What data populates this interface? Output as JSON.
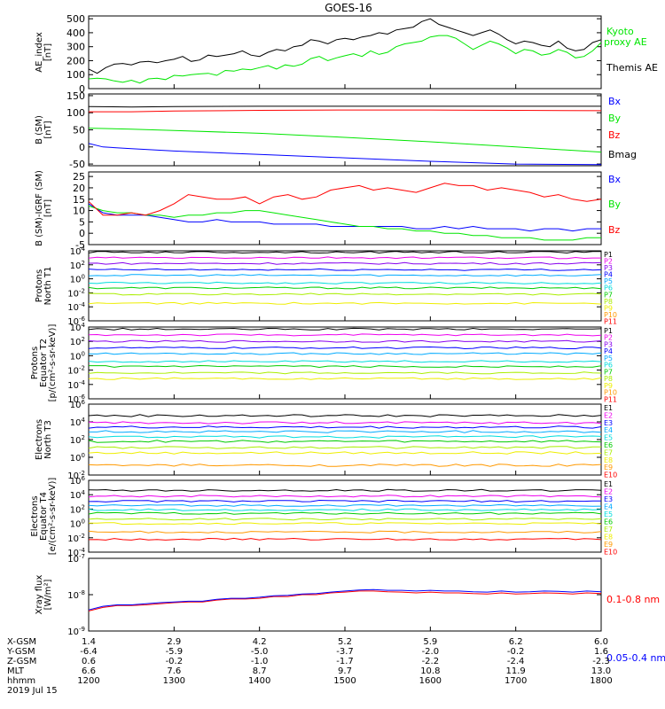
{
  "title": "GOES-16",
  "colors": {
    "black": "#000000",
    "red": "#ff0000",
    "green": "#00e600",
    "blue": "#0000ff",
    "p": [
      "#000000",
      "#ee00ee",
      "#8800ee",
      "#0000ff",
      "#00aaff",
      "#00dddd",
      "#00cc00",
      "#aaee00",
      "#eeee00",
      "#ff9900",
      "#ff0000"
    ],
    "e": [
      "#000000",
      "#ee00ee",
      "#0000ff",
      "#00aaff",
      "#00dddd",
      "#00cc00",
      "#aaee00",
      "#eeee00",
      "#ff9900",
      "#ff0000"
    ]
  },
  "chart_data": [
    {
      "type": "line",
      "id": "ae",
      "ylabel": [
        "AE_index",
        "[nT]"
      ],
      "ylim": [
        0,
        520
      ],
      "yticks": [
        "0",
        "100",
        "200",
        "300",
        "400",
        "500"
      ],
      "series": [
        {
          "name": "Kyoto proxy AE",
          "legend": [
            "Kyoto",
            "proxy AE"
          ],
          "color": "green",
          "x": [
            1200,
            1206,
            1212,
            1218,
            1224,
            1230,
            1236,
            1242,
            1248,
            1254,
            1300,
            1306,
            1312,
            1318,
            1324,
            1330,
            1336,
            1342,
            1348,
            1354,
            1400,
            1406,
            1412,
            1418,
            1424,
            1430,
            1436,
            1442,
            1448,
            1454,
            1500,
            1506,
            1512,
            1518,
            1524,
            1530,
            1536,
            1542,
            1548,
            1554,
            1600,
            1606,
            1612,
            1618,
            1624,
            1630,
            1636,
            1642,
            1648,
            1654,
            1700,
            1706,
            1712,
            1718,
            1724,
            1730,
            1736,
            1742,
            1748,
            1754,
            1800
          ],
          "y": [
            70,
            75,
            70,
            55,
            45,
            60,
            40,
            70,
            75,
            65,
            95,
            90,
            100,
            105,
            110,
            95,
            130,
            125,
            140,
            135,
            150,
            165,
            140,
            170,
            160,
            175,
            215,
            230,
            200,
            220,
            235,
            250,
            230,
            270,
            245,
            260,
            300,
            320,
            330,
            340,
            370,
            380,
            380,
            360,
            320,
            280,
            310,
            340,
            320,
            290,
            250,
            280,
            270,
            240,
            250,
            280,
            260,
            220,
            230,
            270,
            330
          ]
        },
        {
          "name": "Themis AE",
          "legend": [
            "Themis AE"
          ],
          "color": "black",
          "x": [
            1200,
            1206,
            1212,
            1218,
            1224,
            1230,
            1236,
            1242,
            1248,
            1254,
            1300,
            1306,
            1312,
            1318,
            1324,
            1330,
            1336,
            1342,
            1348,
            1354,
            1400,
            1406,
            1412,
            1418,
            1424,
            1430,
            1436,
            1442,
            1448,
            1454,
            1500,
            1506,
            1512,
            1518,
            1524,
            1530,
            1536,
            1542,
            1548,
            1554,
            1600,
            1606,
            1612,
            1618,
            1624,
            1630,
            1636,
            1642,
            1648,
            1654,
            1700,
            1706,
            1712,
            1718,
            1724,
            1730,
            1736,
            1742,
            1748,
            1754,
            1800
          ],
          "y": [
            140,
            110,
            150,
            175,
            180,
            170,
            190,
            195,
            185,
            200,
            210,
            230,
            195,
            205,
            240,
            230,
            240,
            250,
            270,
            240,
            230,
            260,
            280,
            270,
            300,
            310,
            350,
            340,
            320,
            350,
            360,
            350,
            370,
            380,
            400,
            390,
            420,
            430,
            440,
            480,
            500,
            460,
            440,
            420,
            400,
            380,
            400,
            420,
            390,
            350,
            320,
            340,
            330,
            310,
            300,
            340,
            290,
            270,
            280,
            330,
            350
          ]
        }
      ]
    },
    {
      "type": "line",
      "id": "bsm",
      "ylabel": [
        "B (SM)",
        "[nT]"
      ],
      "ylim": [
        -55,
        155
      ],
      "yticks": [
        "-50",
        "0",
        "50",
        "100",
        "150"
      ],
      "series": [
        {
          "name": "Bx",
          "color": "blue",
          "x": [
            1200,
            1210,
            1230,
            1300,
            1400,
            1500,
            1600,
            1700,
            1800
          ],
          "y": [
            10,
            0,
            -5,
            -12,
            -22,
            -32,
            -42,
            -50,
            -52
          ]
        },
        {
          "name": "By",
          "color": "green",
          "x": [
            1200,
            1230,
            1300,
            1400,
            1500,
            1600,
            1700,
            1800
          ],
          "y": [
            55,
            52,
            48,
            40,
            28,
            15,
            0,
            -15
          ]
        },
        {
          "name": "Bz",
          "color": "red",
          "x": [
            1200,
            1230,
            1300,
            1400,
            1500,
            1600,
            1700,
            1800
          ],
          "y": [
            103,
            103,
            105,
            107,
            108,
            108,
            107,
            106
          ]
        },
        {
          "name": "Bmag",
          "color": "black",
          "x": [
            1200,
            1230,
            1300,
            1400,
            1500,
            1600,
            1700,
            1800
          ],
          "y": [
            118,
            117,
            118,
            119,
            119,
            119,
            119,
            119
          ]
        }
      ]
    },
    {
      "type": "line",
      "id": "bdiff",
      "ylabel": [
        "B (SM)-IGRF (SM)",
        "[nT]"
      ],
      "ylim": [
        -5,
        27
      ],
      "yticks": [
        "-5",
        "0",
        "5",
        "10",
        "15",
        "20",
        "25"
      ],
      "series": [
        {
          "name": "Bx",
          "color": "blue",
          "x": [
            1200,
            1210,
            1220,
            1230,
            1240,
            1250,
            1300,
            1310,
            1320,
            1330,
            1340,
            1350,
            1400,
            1410,
            1420,
            1430,
            1440,
            1450,
            1500,
            1510,
            1520,
            1530,
            1540,
            1550,
            1600,
            1610,
            1620,
            1630,
            1640,
            1650,
            1700,
            1710,
            1720,
            1730,
            1740,
            1750,
            1800
          ],
          "y": [
            13,
            9,
            8,
            8,
            8,
            7,
            6,
            5,
            5,
            6,
            5,
            5,
            5,
            4,
            4,
            4,
            4,
            3,
            3,
            3,
            3,
            3,
            3,
            2,
            2,
            3,
            2,
            3,
            2,
            2,
            2,
            1,
            2,
            2,
            1,
            2,
            2
          ]
        },
        {
          "name": "By",
          "color": "green",
          "x": [
            1200,
            1210,
            1220,
            1230,
            1240,
            1250,
            1300,
            1310,
            1320,
            1330,
            1340,
            1350,
            1400,
            1410,
            1420,
            1430,
            1440,
            1450,
            1500,
            1510,
            1520,
            1530,
            1540,
            1550,
            1600,
            1610,
            1620,
            1630,
            1640,
            1650,
            1700,
            1710,
            1720,
            1730,
            1740,
            1750,
            1800
          ],
          "y": [
            12,
            10,
            9,
            9,
            8,
            8,
            7,
            8,
            8,
            9,
            9,
            10,
            10,
            9,
            8,
            7,
            6,
            5,
            4,
            3,
            3,
            2,
            2,
            1,
            1,
            0,
            0,
            -1,
            -1,
            -2,
            -2,
            -2,
            -3,
            -3,
            -3,
            -2,
            -2
          ]
        },
        {
          "name": "Bz",
          "color": "red",
          "x": [
            1200,
            1210,
            1220,
            1230,
            1240,
            1250,
            1300,
            1310,
            1320,
            1330,
            1340,
            1350,
            1400,
            1410,
            1420,
            1430,
            1440,
            1450,
            1500,
            1510,
            1520,
            1530,
            1540,
            1550,
            1600,
            1610,
            1620,
            1630,
            1640,
            1650,
            1700,
            1710,
            1720,
            1730,
            1740,
            1750,
            1800
          ],
          "y": [
            14,
            8,
            8,
            9,
            8,
            10,
            13,
            17,
            16,
            15,
            15,
            16,
            13,
            16,
            17,
            15,
            16,
            19,
            20,
            21,
            19,
            20,
            19,
            18,
            20,
            22,
            21,
            21,
            19,
            20,
            19,
            18,
            16,
            17,
            15,
            14,
            15
          ]
        }
      ]
    },
    {
      "type": "line",
      "id": "pn",
      "log": true,
      "ylabel": [
        "Protons",
        "North T1"
      ],
      "ylim": [
        -6,
        4
      ],
      "yticks": [
        {
          "m": "10",
          "e": "4"
        },
        {
          "m": "10",
          "e": "2"
        },
        {
          "m": "10",
          "e": "0"
        },
        {
          "m": "10",
          "e": "-2"
        },
        {
          "m": "10",
          "e": "-4"
        },
        {
          "m": "10",
          "e": "-6"
        }
      ],
      "channels": [
        "P1",
        "P2",
        "P3",
        "P4",
        "P5",
        "P6",
        "P7",
        "P8",
        "P9",
        "P10",
        "P11"
      ],
      "levels": [
        3.8,
        3.0,
        2.2,
        1.3,
        0.5,
        -0.6,
        -1.3,
        -2.2,
        -3.5,
        null,
        null
      ]
    },
    {
      "type": "line",
      "id": "pe",
      "log": true,
      "ylabel": [
        "Protons",
        "Equator T2",
        "[p/(cm²-s-sr-keV)]"
      ],
      "ylim": [
        -6,
        4
      ],
      "yticks": [
        {
          "m": "10",
          "e": "4"
        },
        {
          "m": "10",
          "e": "2"
        },
        {
          "m": "10",
          "e": "0"
        },
        {
          "m": "10",
          "e": "-2"
        },
        {
          "m": "10",
          "e": "-4"
        },
        {
          "m": "10",
          "e": "-6"
        }
      ],
      "channels": [
        "P1",
        "P2",
        "P3",
        "P4",
        "P5",
        "P6",
        "P7",
        "P8",
        "P9",
        "P10",
        "P11"
      ],
      "levels": [
        3.7,
        2.9,
        2.0,
        1.1,
        0.3,
        -0.8,
        -1.5,
        -2.4,
        -3.2,
        null,
        null
      ]
    },
    {
      "type": "line",
      "id": "en",
      "log": true,
      "ylabel": [
        "Electrons",
        "North T3"
      ],
      "ylim": [
        -2,
        6
      ],
      "yticks": [
        {
          "m": "10",
          "e": "6"
        },
        {
          "m": "10",
          "e": "4"
        },
        {
          "m": "10",
          "e": "2"
        },
        {
          "m": "10",
          "e": "0"
        },
        {
          "m": "10",
          "e": "-2"
        }
      ],
      "channels": [
        "E1",
        "E2",
        "E3",
        "E4",
        "E5",
        "E6",
        "E7",
        "E8",
        "E9",
        "E10"
      ],
      "levels": [
        4.7,
        3.9,
        3.4,
        2.9,
        2.3,
        1.8,
        1.1,
        0.5,
        -0.9,
        null
      ]
    },
    {
      "type": "line",
      "id": "ee",
      "log": true,
      "ylabel": [
        "Electrons",
        "Equator T4",
        "[e/(cm²-s-sr-keV)]"
      ],
      "ylim": [
        -4,
        6
      ],
      "yticks": [
        {
          "m": "10",
          "e": "6"
        },
        {
          "m": "10",
          "e": "4"
        },
        {
          "m": "10",
          "e": "2"
        },
        {
          "m": "10",
          "e": "0"
        },
        {
          "m": "10",
          "e": "-2"
        },
        {
          "m": "10",
          "e": "-4"
        }
      ],
      "channels": [
        "E1",
        "E2",
        "E3",
        "E4",
        "E5",
        "E6",
        "E7",
        "E8",
        "E9",
        "E10"
      ],
      "levels": [
        4.6,
        3.8,
        3.1,
        2.5,
        1.9,
        1.4,
        0.6,
        0.0,
        -1.2,
        -2.2
      ]
    },
    {
      "type": "line",
      "id": "xray",
      "log": true,
      "ylabel": [
        "Xray flux",
        "[W/m²]"
      ],
      "ylim": [
        -9,
        -7
      ],
      "yticks": [
        {
          "m": "10",
          "e": "-7"
        },
        {
          "m": "10",
          "e": "-8"
        },
        {
          "m": "10",
          "e": "-9"
        }
      ],
      "series": [
        {
          "name": "0.1-0.8 nm",
          "color": "red",
          "x": [
            1200,
            1210,
            1220,
            1230,
            1240,
            1250,
            1300,
            1310,
            1320,
            1330,
            1340,
            1350,
            1400,
            1410,
            1420,
            1430,
            1440,
            1450,
            1500,
            1510,
            1520,
            1530,
            1540,
            1550,
            1600,
            1610,
            1620,
            1630,
            1640,
            1650,
            1700,
            1710,
            1720,
            1730,
            1740,
            1750,
            1800
          ],
          "y": [
            -8.45,
            -8.35,
            -8.3,
            -8.3,
            -8.28,
            -8.25,
            -8.22,
            -8.2,
            -8.2,
            -8.15,
            -8.12,
            -8.12,
            -8.1,
            -8.05,
            -8.05,
            -8.0,
            -8.0,
            -7.95,
            -7.93,
            -7.9,
            -7.9,
            -7.92,
            -7.93,
            -7.95,
            -7.93,
            -7.95,
            -7.95,
            -7.97,
            -7.98,
            -7.95,
            -7.98,
            -7.97,
            -7.95,
            -7.96,
            -7.98,
            -7.95,
            -7.97
          ]
        },
        {
          "name": "0.05-0.4 nm",
          "color": "blue",
          "x": [
            1200,
            1210,
            1220,
            1230,
            1240,
            1250,
            1300,
            1310,
            1320,
            1330,
            1340,
            1350,
            1400,
            1410,
            1420,
            1430,
            1440,
            1450,
            1500,
            1510,
            1520,
            1530,
            1540,
            1550,
            1600,
            1610,
            1620,
            1630,
            1640,
            1650,
            1700,
            1710,
            1720,
            1730,
            1740,
            1750,
            1800
          ],
          "y": [
            -8.42,
            -8.32,
            -8.28,
            -8.28,
            -8.25,
            -8.22,
            -8.2,
            -8.18,
            -8.18,
            -8.13,
            -8.1,
            -8.1,
            -8.07,
            -8.03,
            -8.02,
            -7.98,
            -7.97,
            -7.93,
            -7.9,
            -7.87,
            -7.86,
            -7.88,
            -7.88,
            -7.9,
            -7.88,
            -7.9,
            -7.9,
            -7.92,
            -7.93,
            -7.9,
            -7.93,
            -7.92,
            -7.9,
            -7.91,
            -7.93,
            -7.9,
            -7.92
          ]
        }
      ]
    }
  ],
  "xaxis": {
    "row_labels": [
      "X-GSM",
      "Y-GSM",
      "Z-GSM",
      "MLT",
      "hhmm"
    ],
    "date": "2019 Jul 15",
    "columns": [
      [
        "1.4",
        "-6.4",
        "0.6",
        "6.6",
        "1200"
      ],
      [
        "2.9",
        "-5.9",
        "-0.2",
        "7.6",
        "1300"
      ],
      [
        "4.2",
        "-5.0",
        "-1.0",
        "8.7",
        "1400"
      ],
      [
        "5.2",
        "-3.7",
        "-1.7",
        "9.7",
        "1500"
      ],
      [
        "5.9",
        "-2.0",
        "-2.2",
        "10.8",
        "1600"
      ],
      [
        "6.2",
        "-0.2",
        "-2.4",
        "11.9",
        "1700"
      ],
      [
        "6.0",
        "1.6",
        "-2.3",
        "13.0",
        "1800"
      ]
    ]
  }
}
